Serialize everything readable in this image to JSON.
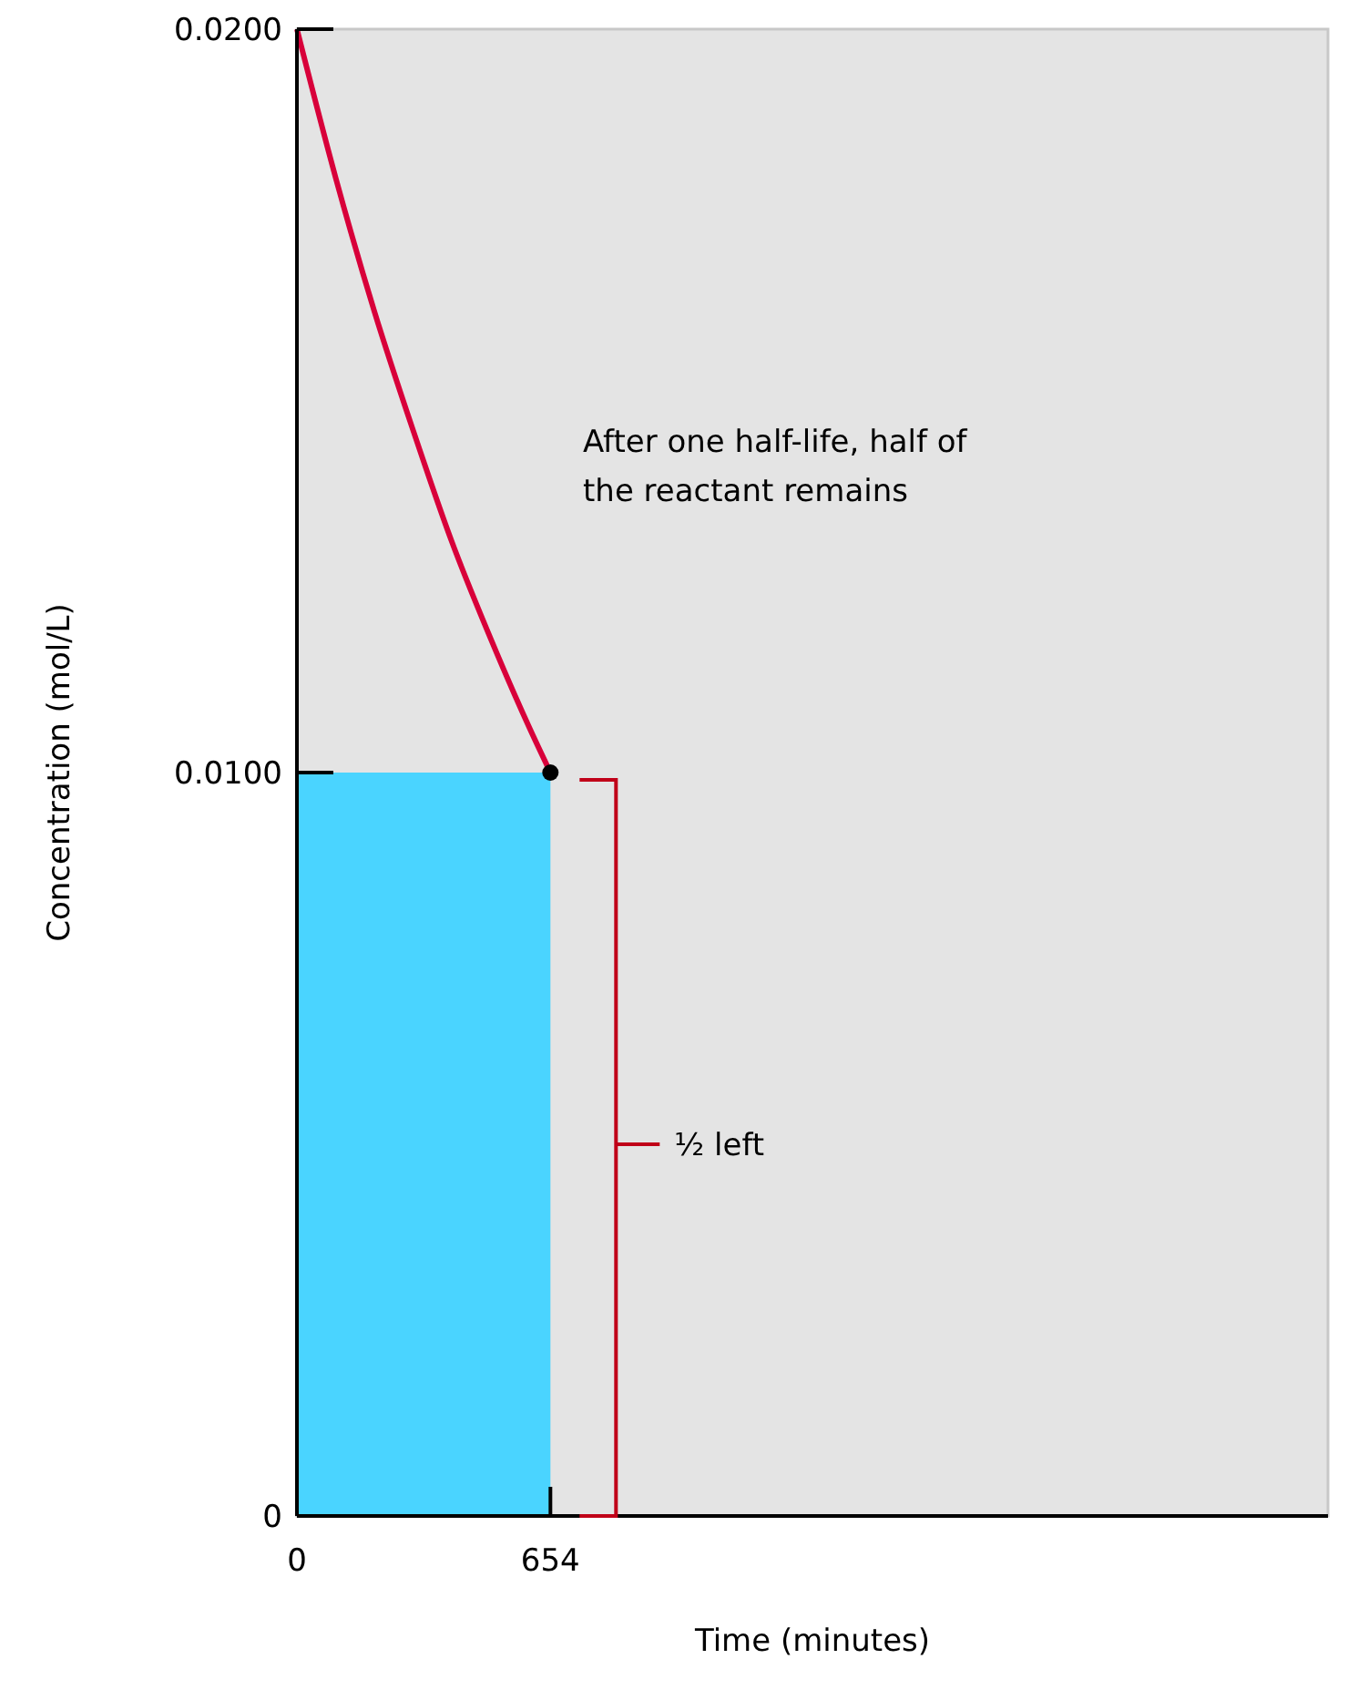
{
  "chart_data": {
    "type": "line",
    "xlabel": "Time (minutes)",
    "ylabel": "Concentration (mol/L)",
    "xlim": [
      0,
      2660
    ],
    "ylim": [
      0,
      0.02
    ],
    "xticks": [
      0,
      654
    ],
    "yticks": [
      0,
      {
        "value": 0.01,
        "label": "0.0100"
      },
      {
        "value": 0.02,
        "label": "0.0200"
      }
    ],
    "series": [
      {
        "type": "area",
        "color": "#4ad4ff",
        "x": [
          0,
          654
        ],
        "values": [
          0.01,
          0.01
        ]
      },
      {
        "color": "#d8003a",
        "x": [
          0,
          100,
          200,
          300,
          400,
          500,
          600,
          654
        ],
        "values": [
          0.02,
          0.018,
          0.0162,
          0.0146,
          0.0131,
          0.0118,
          0.0106,
          0.01
        ]
      },
      {
        "type": "scatter",
        "color": "#000000",
        "marker": "circle",
        "x": [
          654
        ],
        "values": [
          0.01
        ]
      }
    ],
    "annotations": [
      "After one half-life, half of the reactant remains",
      "½ left"
    ]
  }
}
